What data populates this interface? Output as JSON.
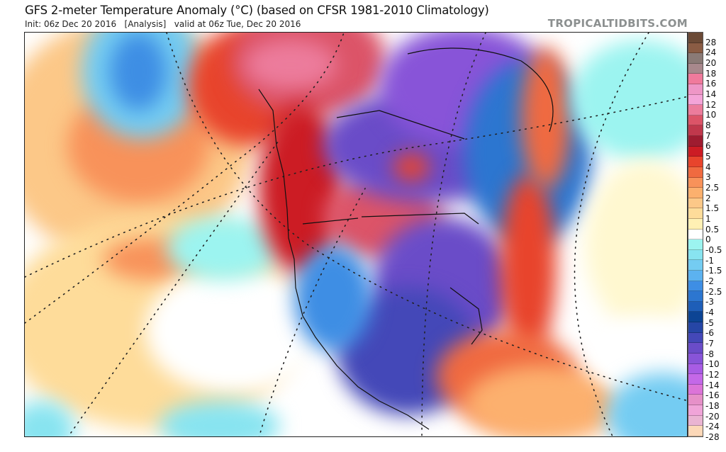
{
  "header": {
    "title": "GFS 2-meter Temperature Anomaly (°C) (based on CFSR 1981-2010 Climatology)",
    "subtitle": "Init: 06z Dec 20 2016   [Analysis]   valid at 06z Tue, Dec 20 2016",
    "brand": "TROPICALTIDBITS.COM"
  },
  "map": {
    "region": "North America and North Pacific / Atlantic",
    "variable": "2-meter temperature anomaly",
    "units": "°C"
  },
  "legend": {
    "bands": [
      {
        "color": "#6b4a36"
      },
      {
        "color": "#8a5c44"
      },
      {
        "color": "#8a7a76"
      },
      {
        "color": "#a8888c"
      },
      {
        "color": "#f07a9c"
      },
      {
        "color": "#ee96c6"
      },
      {
        "color": "#f4a4d8"
      },
      {
        "color": "#ec7c9c"
      },
      {
        "color": "#dc5468"
      },
      {
        "color": "#c0384c"
      },
      {
        "color": "#9e1c30"
      },
      {
        "color": "#cc1c24"
      },
      {
        "color": "#e8442c"
      },
      {
        "color": "#f06a40"
      },
      {
        "color": "#f8925a"
      },
      {
        "color": "#fcb06e"
      },
      {
        "color": "#fcc888"
      },
      {
        "color": "#fedc9a"
      },
      {
        "color": "#fff0b4"
      },
      {
        "color": "#ffffff"
      },
      {
        "color": "#9cf4f0"
      },
      {
        "color": "#88e4f0"
      },
      {
        "color": "#74ccf2"
      },
      {
        "color": "#5cb2f0"
      },
      {
        "color": "#3e8ee4"
      },
      {
        "color": "#2c76d0"
      },
      {
        "color": "#1e5eb8"
      },
      {
        "color": "#0c4494"
      },
      {
        "color": "#2646a6"
      },
      {
        "color": "#4448b8"
      },
      {
        "color": "#6a4cc8"
      },
      {
        "color": "#8854d8"
      },
      {
        "color": "#a85ce4"
      },
      {
        "color": "#c468e8"
      },
      {
        "color": "#dc74d8"
      },
      {
        "color": "#e690c8"
      },
      {
        "color": "#f0a4d8"
      },
      {
        "color": "#eab4d2"
      },
      {
        "color": "#fcd8b8"
      }
    ],
    "ticks": [
      "28",
      "24",
      "20",
      "18",
      "16",
      "14",
      "12",
      "10",
      "8",
      "7",
      "6",
      "5",
      "4",
      "3",
      "2.5",
      "2",
      "1.5",
      "1",
      "0.5",
      "0",
      "-0.5",
      "-1",
      "-1.5",
      "-2",
      "-2.5",
      "-3",
      "-4",
      "-5",
      "-6",
      "-7",
      "-8",
      "-10",
      "-12",
      "-14",
      "-16",
      "-18",
      "-20",
      "-24",
      "-28"
    ]
  }
}
